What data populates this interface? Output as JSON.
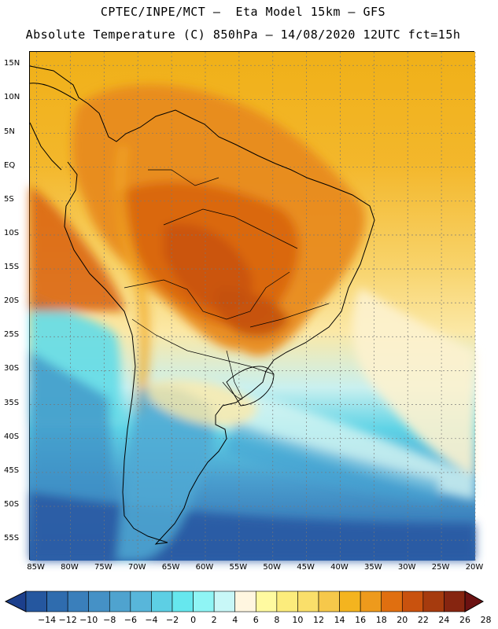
{
  "header": {
    "line1": "CPTEC/INPE/MCT –  Eta Model 15km – GFS",
    "line2": "Absolute Temperature (C) 850hPa – 14/08/2020 12UTC fct=15h"
  },
  "axes": {
    "lat_labels": [
      "15N",
      "10N",
      "5N",
      "EQ",
      "5S",
      "10S",
      "15S",
      "20S",
      "25S",
      "30S",
      "35S",
      "40S",
      "45S",
      "50S",
      "55S"
    ],
    "lat_values": [
      15,
      10,
      5,
      0,
      -5,
      -10,
      -15,
      -20,
      -25,
      -30,
      -35,
      -40,
      -45,
      -50,
      -55
    ],
    "lon_labels": [
      "85W",
      "80W",
      "75W",
      "70W",
      "65W",
      "60W",
      "55W",
      "50W",
      "45W",
      "40W",
      "35W",
      "30W",
      "25W",
      "20W"
    ],
    "lon_values": [
      -85,
      -80,
      -75,
      -70,
      -65,
      -60,
      -55,
      -50,
      -45,
      -40,
      -35,
      -30,
      -25,
      -20
    ],
    "lat_range": [
      -58,
      17
    ],
    "lon_range": [
      -86,
      -20
    ]
  },
  "colorbar": {
    "labels": [
      "-14",
      "-12",
      "-10",
      "-8",
      "-6",
      "-4",
      "-2",
      "0",
      "2",
      "4",
      "6",
      "8",
      "10",
      "12",
      "14",
      "16",
      "18",
      "20",
      "22",
      "24",
      "26",
      "28"
    ],
    "colors": [
      "#1c3f8c",
      "#25579f",
      "#2f6cae",
      "#3a7fbb",
      "#4591c6",
      "#4fa3cf",
      "#58b6da",
      "#5dcfe4",
      "#66e7ee",
      "#8ff5f5",
      "#c8f7f7",
      "#fff6e0",
      "#fffaa0",
      "#fcec7c",
      "#fadf6a",
      "#f6c84a",
      "#f4b41f",
      "#ee9a1c",
      "#e06f10",
      "#c9520e",
      "#a63b0e",
      "#862510",
      "#6b1212"
    ]
  }
}
